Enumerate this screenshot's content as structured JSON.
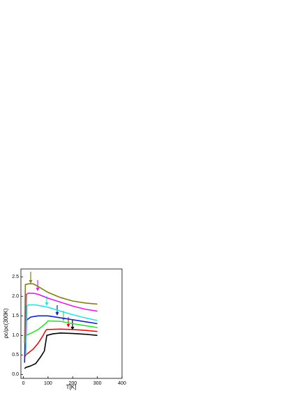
{
  "chart_data": {
    "type": "line",
    "x_label": "T[K]",
    "y_label": "ρc/ρc(300K)",
    "xlim": [
      -10,
      400
    ],
    "ylim": [
      -0.1,
      2.7
    ],
    "xticks": [
      0,
      100,
      200,
      300,
      400
    ],
    "yticks": [
      {
        "value": 0,
        "label": "0.0"
      },
      {
        "value": 0.5,
        "label": "0.5"
      },
      {
        "value": 1,
        "label": "1.0"
      },
      {
        "value": 1.5,
        "label": "1.5"
      },
      {
        "value": 2,
        "label": "2.0"
      },
      {
        "value": 2.5,
        "label": "2.5"
      }
    ],
    "series": [
      {
        "color": "#000000",
        "x": [
          5,
          10,
          20,
          30,
          50,
          70,
          85,
          90,
          95,
          120,
          150,
          200,
          250,
          300
        ],
        "values": [
          0.15,
          0.18,
          0.2,
          0.22,
          0.28,
          0.45,
          0.6,
          0.8,
          1.0,
          1.04,
          1.06,
          1.05,
          1.03,
          1.0
        ]
      },
      {
        "color": "#e01010",
        "x": [
          5,
          10,
          20,
          40,
          60,
          80,
          90,
          95,
          150,
          200,
          250,
          300
        ],
        "values": [
          0.45,
          0.5,
          0.55,
          0.65,
          0.8,
          1.0,
          1.12,
          1.15,
          1.16,
          1.15,
          1.13,
          1.1
        ]
      },
      {
        "color": "#33dd33",
        "x": [
          5,
          10,
          30,
          60,
          90,
          100,
          150,
          200,
          250,
          300
        ],
        "values": [
          0.95,
          1.0,
          1.05,
          1.15,
          1.3,
          1.37,
          1.36,
          1.3,
          1.25,
          1.2
        ]
      },
      {
        "color": "#1020c0",
        "x": [
          5,
          8,
          15,
          30,
          60,
          100,
          150,
          200,
          250,
          300
        ],
        "values": [
          0.3,
          1.35,
          1.4,
          1.47,
          1.5,
          1.5,
          1.45,
          1.4,
          1.35,
          1.3
        ]
      },
      {
        "color": "#30e0e0",
        "x": [
          10,
          14,
          20,
          50,
          100,
          150,
          200,
          250,
          300
        ],
        "values": [
          0.5,
          1.75,
          1.78,
          1.78,
          1.72,
          1.62,
          1.53,
          1.45,
          1.38
        ]
      },
      {
        "color": "#e020e0",
        "x": [
          8,
          12,
          20,
          40,
          60,
          100,
          150,
          200,
          250,
          300
        ],
        "values": [
          1.0,
          2.05,
          2.08,
          2.08,
          2.05,
          1.95,
          1.85,
          1.75,
          1.67,
          1.62
        ]
      },
      {
        "color": "#808010",
        "x": [
          5,
          8,
          20,
          40,
          60,
          100,
          150,
          200,
          250,
          300
        ],
        "values": [
          0.8,
          2.3,
          2.32,
          2.32,
          2.25,
          2.1,
          1.97,
          1.88,
          1.83,
          1.8
        ]
      }
    ]
  }
}
